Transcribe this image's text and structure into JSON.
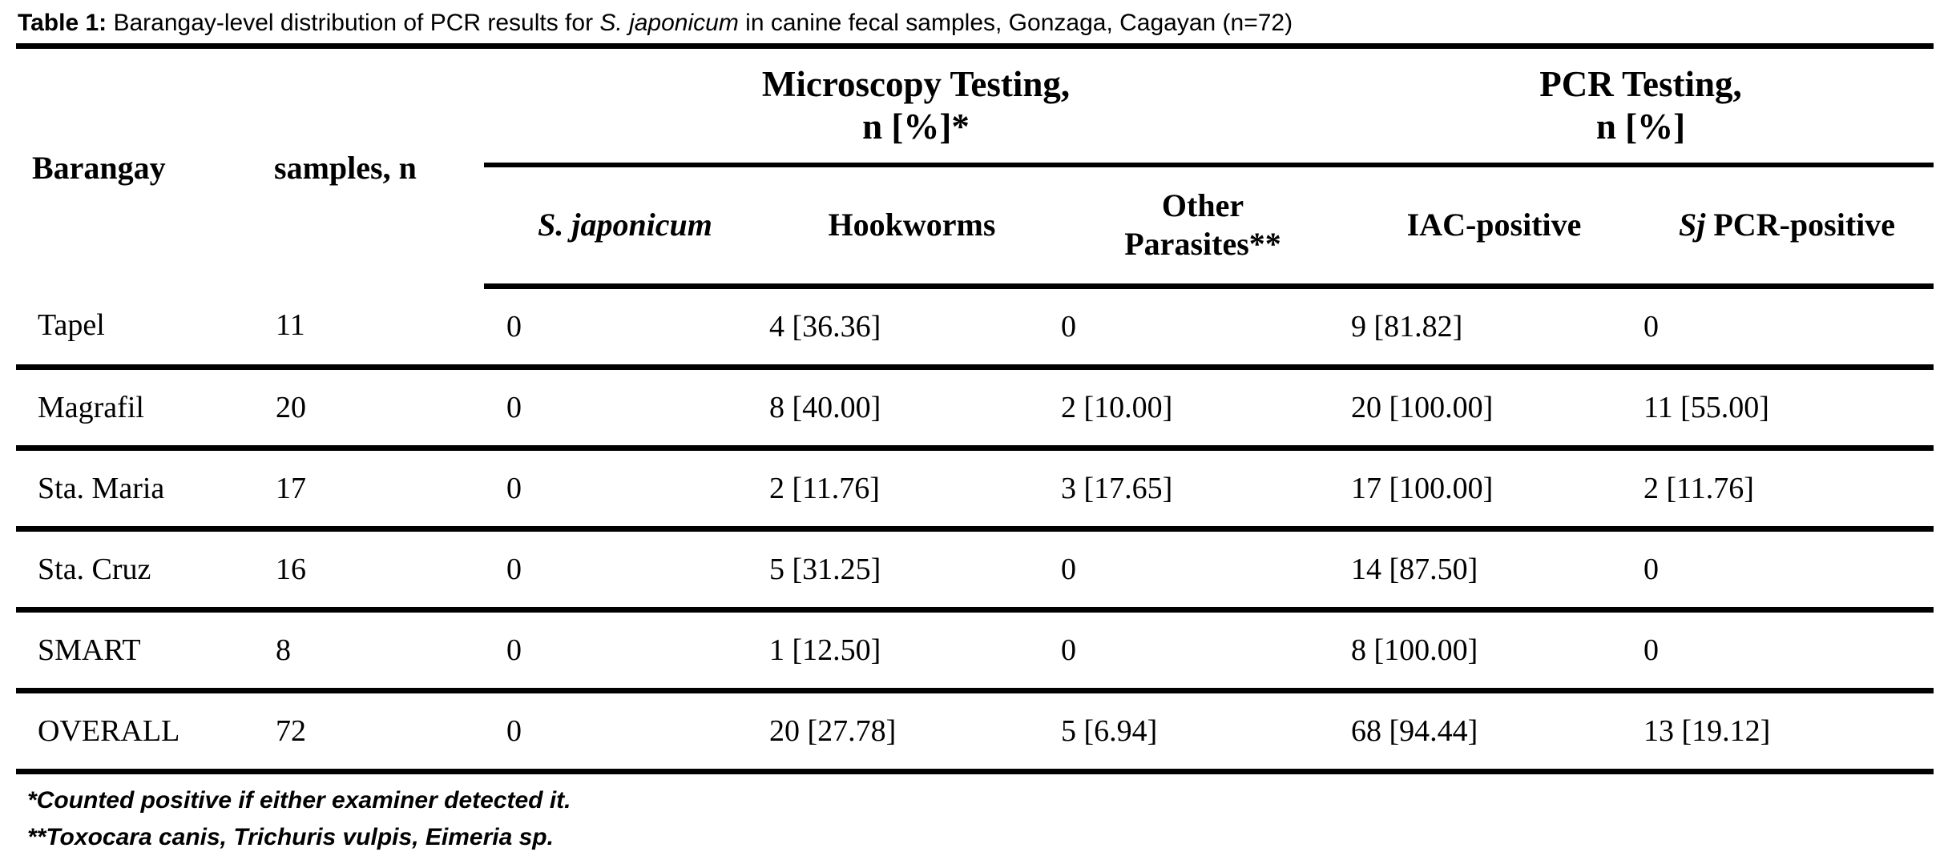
{
  "caption": {
    "label": "Table 1:",
    "text_before_italic": " Barangay-level distribution of PCR results for ",
    "italic_species": "S. japonicum",
    "text_after_italic": " in canine fecal samples, Gonzaga, Cagayan (n=72)"
  },
  "header": {
    "barangay": "Barangay",
    "samples": "samples, n",
    "microscopy_group": "Microscopy Testing,\nn [%]*",
    "pcr_group": "PCR Testing,\nn [%]",
    "sub": {
      "s_japonicum": "S. japonicum",
      "hookworms": "Hookworms",
      "other_parasites": "Other\nParasites**",
      "iac_positive": "IAC-positive",
      "sj_pcr_italic": "Sj",
      "sj_pcr_rest": " PCR-positive"
    }
  },
  "rows": [
    {
      "barangay": "Tapel",
      "samples": "11",
      "sj_microscopy": "0",
      "hookworms": "4 [36.36]",
      "other_parasites": "0",
      "iac_positive": "9 [81.82]",
      "sj_pcr_positive": "0"
    },
    {
      "barangay": "Magrafil",
      "samples": "20",
      "sj_microscopy": "0",
      "hookworms": "8 [40.00]",
      "other_parasites": "2 [10.00]",
      "iac_positive": "20 [100.00]",
      "sj_pcr_positive": "11 [55.00]"
    },
    {
      "barangay": "Sta. Maria",
      "samples": "17",
      "sj_microscopy": "0",
      "hookworms": "2 [11.76]",
      "other_parasites": "3 [17.65]",
      "iac_positive": "17 [100.00]",
      "sj_pcr_positive": "2 [11.76]"
    },
    {
      "barangay": "Sta. Cruz",
      "samples": "16",
      "sj_microscopy": "0",
      "hookworms": "5 [31.25]",
      "other_parasites": "0",
      "iac_positive": "14 [87.50]",
      "sj_pcr_positive": "0"
    },
    {
      "barangay": "SMART",
      "samples": "8",
      "sj_microscopy": "0",
      "hookworms": "1 [12.50]",
      "other_parasites": "0",
      "iac_positive": "8 [100.00]",
      "sj_pcr_positive": "0"
    },
    {
      "barangay": "OVERALL",
      "samples": "72",
      "sj_microscopy": "0",
      "hookworms": "20 [27.78]",
      "other_parasites": "5 [6.94]",
      "iac_positive": "68 [94.44]",
      "sj_pcr_positive": "13 [19.12]"
    }
  ],
  "footnotes": {
    "line1": "*Counted positive if either examiner detected it.",
    "line2": "**Toxocara canis, Trichuris vulpis, Eimeria sp."
  },
  "colors": {
    "background": "#ffffff",
    "text": "#000000",
    "rule": "#000000"
  }
}
